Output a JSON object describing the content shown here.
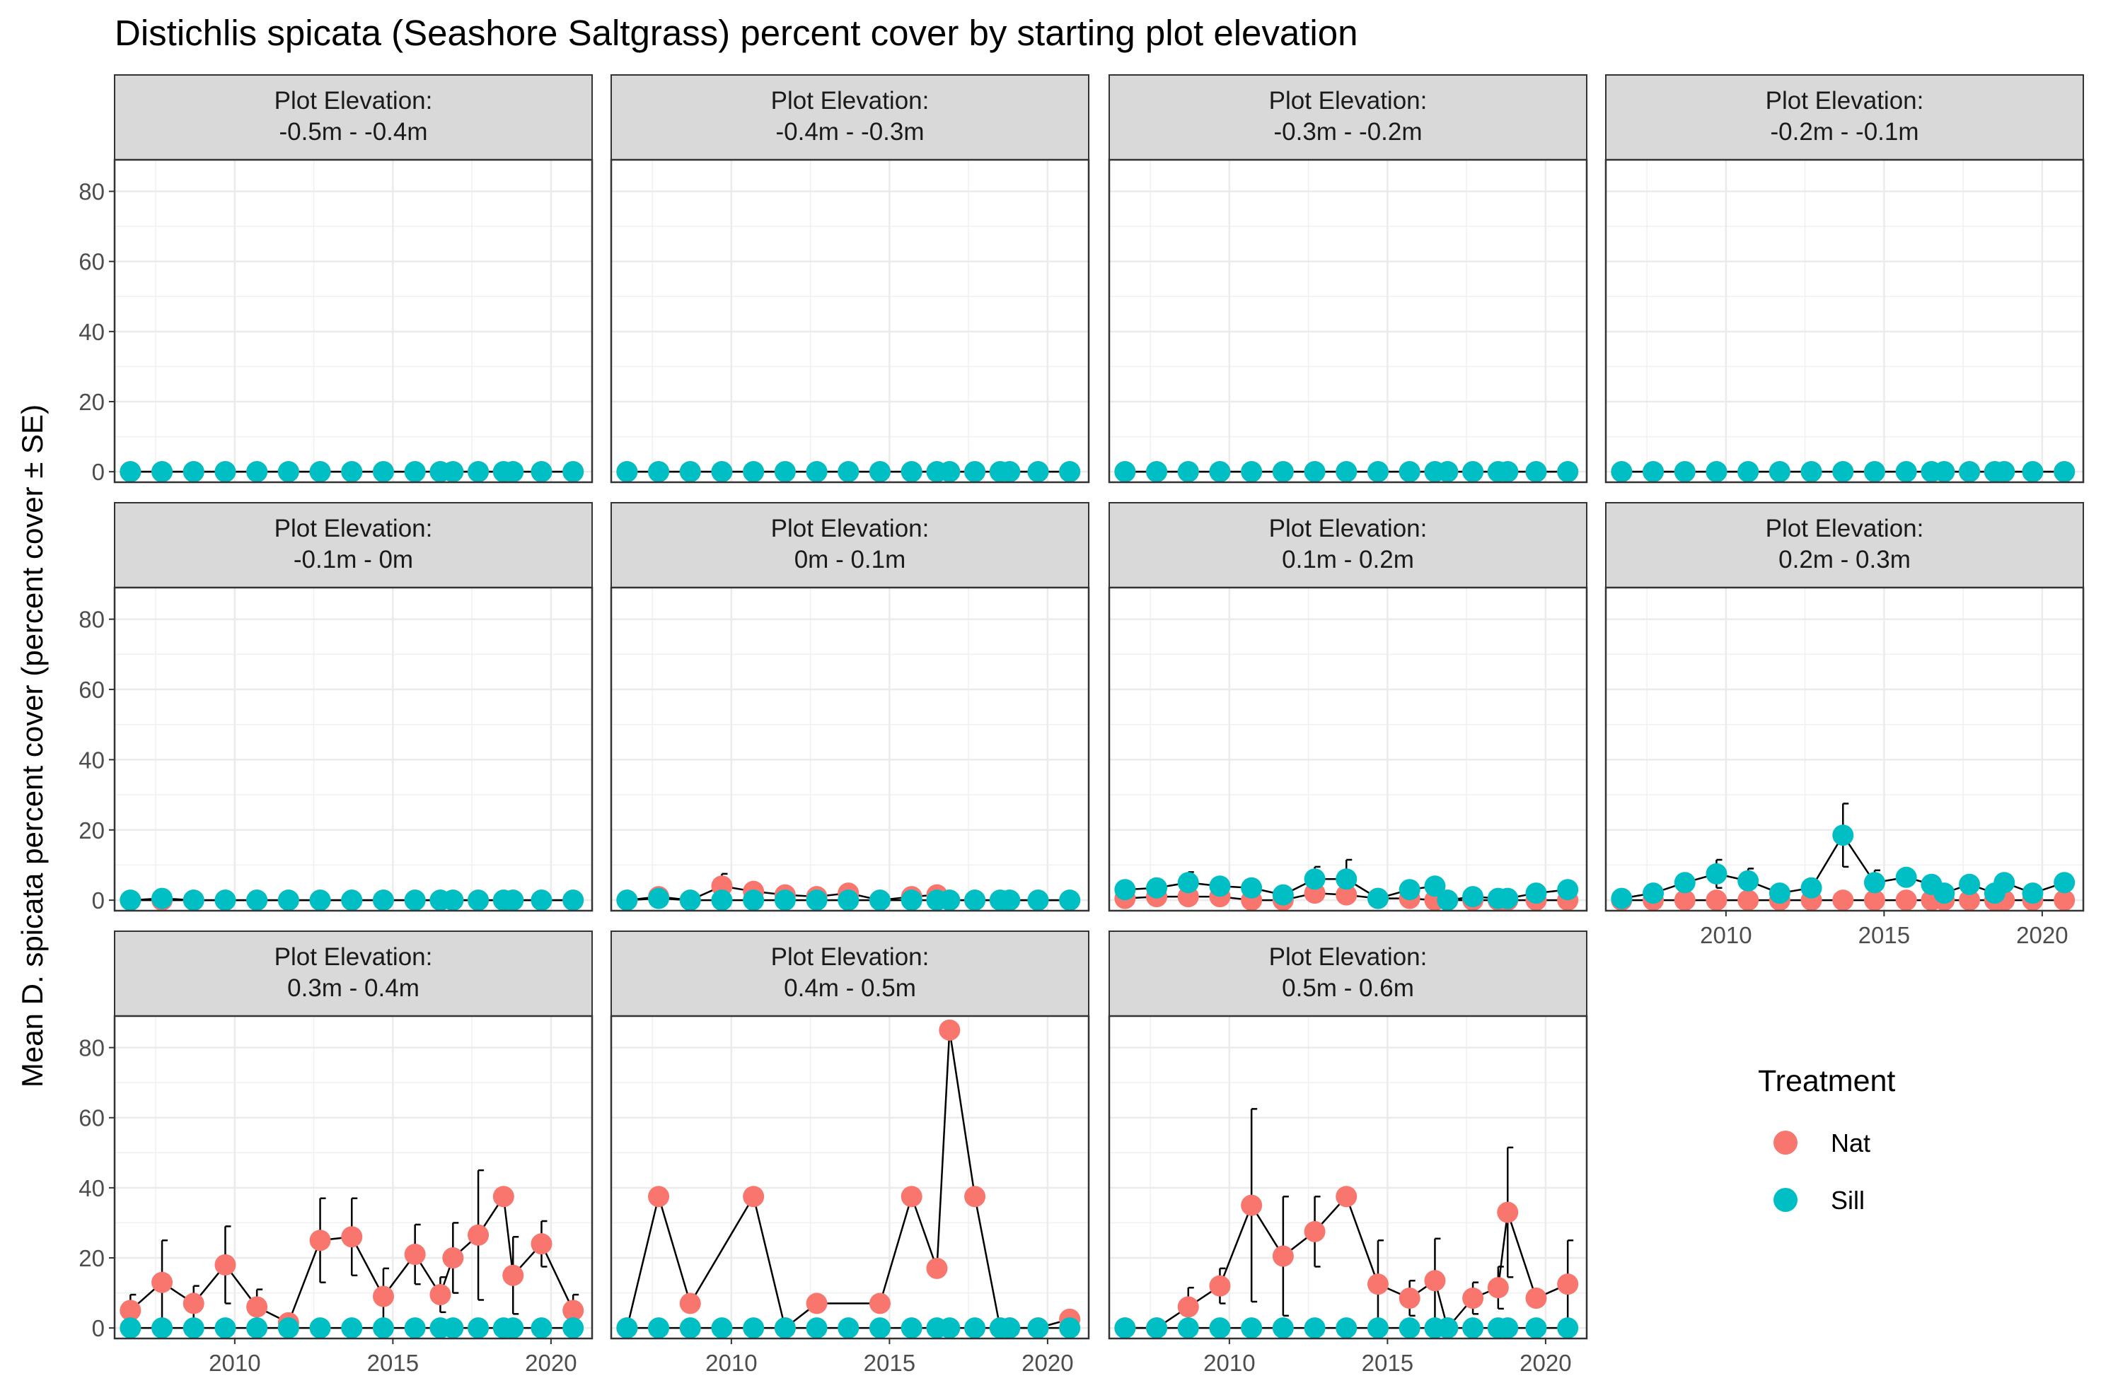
{
  "chart_data": {
    "type": "line",
    "title": "Distichlis spicata (Seashore Saltgrass) percent cover by starting plot elevation",
    "ylabel": "Mean D. spicata percent cover (percent cover ± SE)",
    "xlabel": "",
    "facet_prefix": "Plot Elevation:",
    "ylim": [
      -3,
      89
    ],
    "xlim": [
      2006.2,
      2021.3
    ],
    "y_ticks": [
      0,
      20,
      40,
      60,
      80
    ],
    "x_ticks": [
      2010,
      2015,
      2020
    ],
    "grid": true,
    "legend": {
      "title": "Treatment",
      "position": "right",
      "entries": [
        {
          "name": "Nat",
          "color": "#F8766D"
        },
        {
          "name": "Sill",
          "color": "#00BFC4"
        }
      ]
    },
    "years": [
      2006.7,
      2007.7,
      2008.7,
      2009.7,
      2010.7,
      2011.7,
      2012.7,
      2013.7,
      2014.7,
      2015.7,
      2016.5,
      2016.9,
      2017.7,
      2018.5,
      2018.8,
      2019.7,
      2020.7
    ],
    "panels": [
      {
        "label": "-0.5m - -0.4m",
        "series": [
          {
            "name": "Nat",
            "values": [
              0,
              0,
              0,
              0,
              0,
              0,
              0,
              0,
              0,
              0,
              0,
              0,
              0,
              0,
              0,
              0,
              0
            ],
            "se": [
              0,
              0,
              0,
              0,
              0,
              0,
              0,
              0,
              0,
              0,
              0,
              0,
              0,
              0,
              0,
              0,
              0
            ]
          },
          {
            "name": "Sill",
            "values": [
              0,
              0,
              0,
              0,
              0,
              0,
              0,
              0,
              0,
              0,
              0,
              0,
              0,
              0,
              0,
              0,
              0
            ],
            "se": [
              0,
              0,
              0,
              0,
              0,
              0,
              0,
              0,
              0,
              0,
              0,
              0,
              0,
              0,
              0,
              0,
              0
            ]
          }
        ]
      },
      {
        "label": "-0.4m - -0.3m",
        "series": [
          {
            "name": "Nat",
            "values": [
              0,
              0,
              0,
              0,
              0,
              0,
              0,
              0,
              0,
              0,
              0,
              0,
              0,
              0,
              0,
              0,
              0
            ],
            "se": [
              0,
              0,
              0,
              0,
              0,
              0,
              0,
              0,
              0,
              0,
              0,
              0,
              0,
              0,
              0,
              0,
              0
            ]
          },
          {
            "name": "Sill",
            "values": [
              0,
              0,
              0,
              0,
              0,
              0,
              0,
              0,
              0,
              0,
              0,
              0,
              0,
              0,
              0,
              0,
              0
            ],
            "se": [
              0,
              0,
              0,
              0,
              0,
              0,
              0,
              0,
              0,
              0,
              0,
              0,
              0,
              0,
              0,
              0,
              0
            ]
          }
        ]
      },
      {
        "label": "-0.3m - -0.2m",
        "series": [
          {
            "name": "Nat",
            "values": [
              0,
              0,
              0,
              0,
              0,
              0,
              0,
              0,
              0,
              0,
              0,
              0,
              0,
              0,
              0,
              0,
              0
            ],
            "se": [
              0,
              0,
              0,
              0,
              0,
              0,
              0,
              0,
              0,
              0,
              0,
              0,
              0,
              0,
              0,
              0,
              0
            ]
          },
          {
            "name": "Sill",
            "values": [
              0,
              0,
              0,
              0,
              0,
              0,
              0,
              0,
              0,
              0,
              0,
              0,
              0,
              0,
              0,
              0,
              0
            ],
            "se": [
              0,
              0,
              0,
              0,
              0,
              0,
              0,
              0,
              0,
              0,
              0,
              0,
              0,
              0,
              0,
              0,
              0
            ]
          }
        ]
      },
      {
        "label": "-0.2m - -0.1m",
        "series": [
          {
            "name": "Nat",
            "values": [
              0,
              0,
              0,
              0,
              0,
              0,
              0,
              0,
              0,
              0,
              0,
              0,
              0,
              0,
              0,
              0,
              0
            ],
            "se": [
              0,
              0,
              0,
              0,
              0,
              0,
              0,
              0,
              0,
              0,
              0,
              0,
              0,
              0,
              0,
              0,
              0
            ]
          },
          {
            "name": "Sill",
            "values": [
              0,
              0,
              0,
              0,
              0,
              0,
              0,
              0,
              0,
              0,
              0,
              0,
              0,
              0,
              0,
              0,
              0
            ],
            "se": [
              0,
              0,
              0,
              0,
              0,
              0,
              0,
              0,
              0,
              0,
              0,
              0,
              0,
              0,
              0,
              0,
              0
            ]
          }
        ]
      },
      {
        "label": "-0.1m - 0m",
        "series": [
          {
            "name": "Nat",
            "values": [
              0,
              0,
              0,
              0,
              0,
              0,
              0,
              0,
              0,
              0,
              0,
              0,
              0,
              0,
              0,
              0,
              0
            ],
            "se": [
              0,
              0,
              0,
              0,
              0,
              0,
              0,
              0,
              0,
              0,
              0,
              0,
              0,
              0,
              0,
              0,
              0
            ]
          },
          {
            "name": "Sill",
            "values": [
              0,
              0.5,
              0,
              0,
              0,
              0,
              0,
              0,
              0,
              0,
              0,
              0,
              0,
              0,
              0,
              0,
              0
            ],
            "se": [
              0,
              0,
              0,
              0,
              0,
              0,
              0,
              0,
              0,
              0,
              0,
              0,
              0,
              0,
              0,
              0,
              0
            ]
          }
        ]
      },
      {
        "label": "0m - 0.1m",
        "series": [
          {
            "name": "Nat",
            "values": [
              0,
              1,
              0,
              4,
              2.5,
              1.5,
              1,
              2,
              0,
              1,
              1.5,
              0,
              0,
              0,
              0,
              0,
              0
            ],
            "se": [
              0,
              0,
              0,
              3.5,
              0,
              0,
              0,
              0,
              0,
              0,
              0,
              0,
              0,
              0,
              0,
              0,
              0
            ]
          },
          {
            "name": "Sill",
            "values": [
              0,
              0.5,
              0,
              0,
              0,
              0,
              0,
              0,
              0,
              0,
              0,
              0,
              0,
              0,
              0,
              0,
              0
            ],
            "se": [
              0,
              0,
              0,
              0,
              0,
              0,
              0,
              0,
              0,
              0,
              0,
              0,
              0,
              0,
              0,
              0,
              0
            ]
          }
        ]
      },
      {
        "label": "0.1m - 0.2m",
        "series": [
          {
            "name": "Nat",
            "values": [
              0.5,
              1,
              1,
              1,
              0,
              0,
              2,
              1.5,
              0.5,
              0.5,
              0,
              0,
              0,
              0,
              0,
              0,
              0
            ],
            "se": [
              0,
              0,
              0,
              0,
              0,
              0,
              0,
              0,
              0,
              0,
              0,
              0,
              0,
              0,
              0,
              0,
              0
            ]
          },
          {
            "name": "Sill",
            "values": [
              3,
              3.5,
              5,
              4,
              3.5,
              1.5,
              6,
              6,
              0.5,
              3,
              4,
              0,
              1,
              0.5,
              0.5,
              2,
              3
            ],
            "se": [
              0,
              0,
              3,
              0,
              2,
              0,
              3.5,
              5.5,
              0,
              0,
              0,
              0,
              0,
              0,
              0,
              0,
              0
            ]
          }
        ]
      },
      {
        "label": "0.2m - 0.3m",
        "series": [
          {
            "name": "Nat",
            "values": [
              0,
              0,
              0,
              0,
              0,
              0,
              0,
              0,
              0,
              0,
              0,
              0,
              0,
              0,
              0,
              0,
              0
            ],
            "se": [
              0,
              0,
              0,
              0,
              0,
              0,
              0,
              0,
              0,
              0,
              0,
              0,
              0,
              0,
              0,
              0,
              0
            ]
          },
          {
            "name": "Sill",
            "values": [
              0.5,
              2,
              5,
              7.5,
              5.5,
              2,
              3.5,
              18.5,
              5,
              6.5,
              4.5,
              2,
              4.5,
              2,
              5,
              2,
              5
            ],
            "se": [
              0,
              0,
              0,
              4,
              3.5,
              0,
              0,
              9,
              3.5,
              0,
              0,
              0,
              0,
              0,
              0,
              0,
              0
            ]
          }
        ]
      },
      {
        "label": "0.3m - 0.4m",
        "series": [
          {
            "name": "Nat",
            "values": [
              5,
              13,
              7,
              18,
              6,
              1.5,
              25,
              26,
              9,
              21,
              9.5,
              20,
              26.5,
              37.5,
              15,
              24,
              5
            ],
            "se": [
              4.5,
              12,
              5,
              11,
              5,
              0,
              12,
              11,
              8,
              8.5,
              5,
              10,
              18.5,
              0,
              11,
              6.5,
              4.5
            ]
          },
          {
            "name": "Sill",
            "values": [
              0,
              0,
              0,
              0,
              0,
              0,
              0,
              0,
              0,
              0,
              0,
              0,
              0,
              0,
              0,
              0,
              0
            ],
            "se": [
              0,
              0,
              0,
              0,
              0,
              0,
              0,
              0,
              0,
              0,
              0,
              0,
              0,
              0,
              0,
              0,
              0
            ]
          }
        ]
      },
      {
        "label": "0.4m - 0.5m",
        "series": [
          {
            "name": "Nat",
            "values": [
              0,
              37.5,
              7,
              null,
              37.5,
              0,
              7,
              null,
              7,
              37.5,
              17,
              85,
              37.5,
              0,
              0,
              0,
              2.5
            ],
            "se": [
              0,
              0,
              0,
              0,
              0,
              0,
              0,
              0,
              0,
              0,
              0,
              0,
              0,
              0,
              0,
              0,
              0
            ]
          },
          {
            "name": "Sill",
            "values": [
              0,
              0,
              0,
              0,
              0,
              0,
              0,
              0,
              0,
              0,
              0,
              0,
              0,
              0,
              0,
              0,
              0
            ],
            "se": [
              0,
              0,
              0,
              0,
              0,
              0,
              0,
              0,
              0,
              0,
              0,
              0,
              0,
              0,
              0,
              0,
              0
            ]
          }
        ]
      },
      {
        "label": "0.5m - 0.6m",
        "series": [
          {
            "name": "Nat",
            "values": [
              0,
              0,
              6,
              12,
              35,
              20.5,
              27.5,
              37.5,
              12.5,
              8.5,
              13.5,
              0,
              8.5,
              11.5,
              33,
              8.5,
              12.5
            ],
            "se": [
              0,
              0,
              5.5,
              5,
              27.5,
              17,
              10,
              0,
              12.5,
              5,
              12,
              0,
              4.5,
              6,
              18.5,
              0,
              12.5
            ]
          },
          {
            "name": "Sill",
            "values": [
              0,
              0,
              0,
              0,
              0,
              0,
              0,
              0,
              0,
              0,
              0,
              0,
              0,
              0,
              0,
              0,
              0
            ],
            "se": [
              0,
              0,
              0,
              0,
              0,
              0,
              0,
              0,
              0,
              0,
              0,
              0,
              0,
              0,
              0,
              0,
              0
            ]
          }
        ]
      }
    ]
  }
}
